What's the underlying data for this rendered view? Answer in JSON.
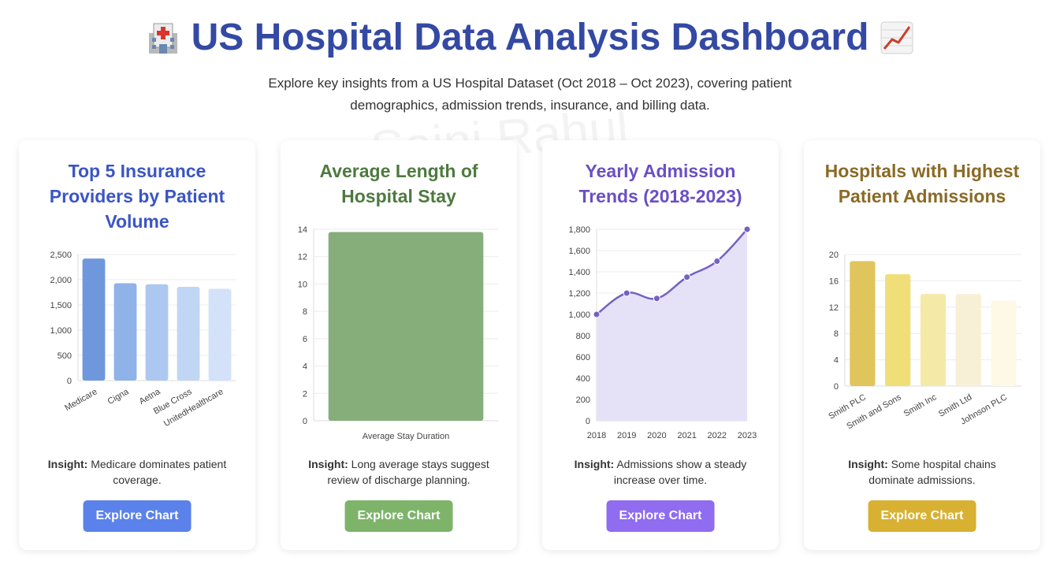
{
  "header": {
    "title": "US Hospital Data Analysis Dashboard",
    "subtitle": "Explore key insights from a US Hospital Dataset (Oct 2018 – Oct 2023), covering patient demographics, admission trends, insurance, and billing data.",
    "left_icon": "hospital-icon",
    "right_icon": "trend-chart-icon"
  },
  "watermark": "Saini Rahul",
  "insight_label": "Insight:",
  "cards": [
    {
      "title": "Top 5 Insurance Providers by Patient Volume",
      "title_color": "#3b55c5",
      "insight": "Medicare dominates patient coverage.",
      "button_label": "Explore Chart",
      "button_color": "#5b82ea"
    },
    {
      "title": "Average Length of Hospital Stay",
      "title_color": "#4e7a3f",
      "insight": "Long average stays suggest review of discharge planning.",
      "button_label": "Explore Chart",
      "button_color": "#7db46a"
    },
    {
      "title": "Yearly Admission Trends (2018-2023)",
      "title_color": "#6a4fc4",
      "insight": "Admissions show a steady increase over time.",
      "button_label": "Explore Chart",
      "button_color": "#8f6cf0"
    },
    {
      "title": "Hospitals with Highest Patient Admissions",
      "title_color": "#8a6a25",
      "insight": "Some hospital chains dominate admissions.",
      "button_label": "Explore Chart",
      "button_color": "#d8b132"
    }
  ],
  "chart_data": [
    {
      "type": "bar",
      "categories": [
        "Medicare",
        "Cigna",
        "Aetna",
        "Blue Cross",
        "UnitedHealthcare"
      ],
      "values": [
        2420,
        1930,
        1910,
        1860,
        1820
      ],
      "ylim": [
        0,
        2500
      ],
      "yticks": [
        0,
        500,
        1000,
        1500,
        2000,
        2500
      ],
      "colors": [
        "#6f98dc",
        "#8fb2e8",
        "#adc8f0",
        "#c1d6f4",
        "#d3e2f8"
      ],
      "grid": true
    },
    {
      "type": "bar",
      "categories": [
        "Average Stay Duration"
      ],
      "values": [
        13.8
      ],
      "ylim": [
        0,
        14
      ],
      "yticks": [
        0,
        2,
        4,
        6,
        8,
        10,
        12,
        14
      ],
      "colors": [
        "#85ae7a"
      ],
      "grid": true
    },
    {
      "type": "area",
      "categories": [
        "2018",
        "2019",
        "2020",
        "2021",
        "2022",
        "2023"
      ],
      "values": [
        1000,
        1200,
        1150,
        1350,
        1500,
        1800
      ],
      "ylim": [
        0,
        1800
      ],
      "yticks": [
        0,
        200,
        400,
        600,
        800,
        1000,
        1200,
        1400,
        1600,
        1800
      ],
      "line_color": "#7561c4",
      "fill_color": "#e5e2f8",
      "grid": true
    },
    {
      "type": "bar",
      "categories": [
        "Smith PLC",
        "Smith and Sons",
        "Smith Inc",
        "Smith Ltd",
        "Johnson PLC"
      ],
      "values": [
        19,
        17,
        14,
        14,
        13
      ],
      "ylim": [
        0,
        20
      ],
      "yticks": [
        0,
        4,
        8,
        12,
        16,
        20
      ],
      "colors": [
        "#e0c55c",
        "#f0df78",
        "#f5e9a8",
        "#f8f0d6",
        "#fdf9e6"
      ],
      "grid": true
    }
  ]
}
